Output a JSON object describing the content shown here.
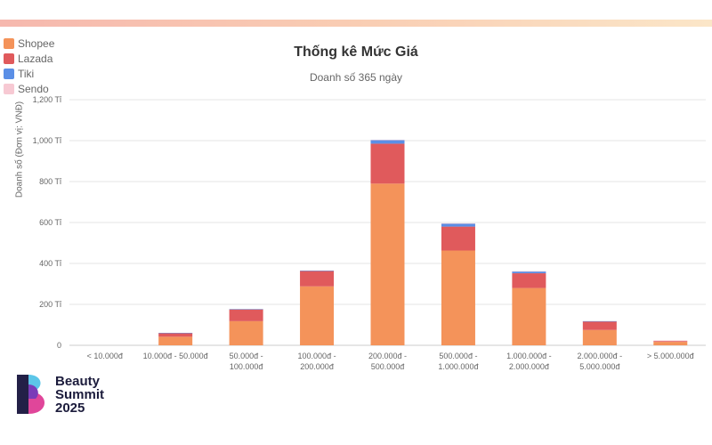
{
  "chart_data": {
    "type": "bar",
    "stacked": true,
    "title": "Thống kê Mức Giá",
    "subtitle": "Doanh số 365 ngày",
    "ylabel": "Doanh số (Đơn vị: VNĐ)",
    "ylim": [
      0,
      1200
    ],
    "yticks": [
      {
        "value": 0,
        "label": "0"
      },
      {
        "value": 200,
        "label": "200 Tỉ"
      },
      {
        "value": 400,
        "label": "400 Tỉ"
      },
      {
        "value": 600,
        "label": "600 Tỉ"
      },
      {
        "value": 800,
        "label": "800 Tỉ"
      },
      {
        "value": 1000,
        "label": "1,000 Tỉ"
      },
      {
        "value": 1200,
        "label": "1,200 Tỉ"
      }
    ],
    "grid": true,
    "legend_position": "top-left",
    "categories": [
      [
        "< 10.000đ"
      ],
      [
        "10.000đ - 50.000đ"
      ],
      [
        "50.000đ -",
        "100.000đ"
      ],
      [
        "100.000đ -",
        "200.000đ"
      ],
      [
        "200.000đ -",
        "500.000đ"
      ],
      [
        "500.000đ -",
        "1.000.000đ"
      ],
      [
        "1.000.000đ -",
        "2.000.000đ"
      ],
      [
        "2.000.000đ -",
        "5.000.000đ"
      ],
      [
        "> 5.000.000đ"
      ]
    ],
    "series": [
      {
        "name": "Shopee",
        "color": "#f4935a",
        "values": [
          0,
          42,
          118,
          288,
          790,
          463,
          280,
          75,
          17
        ]
      },
      {
        "name": "Lazada",
        "color": "#e05a5c",
        "values": [
          0,
          18,
          58,
          75,
          195,
          117,
          72,
          42,
          4
        ]
      },
      {
        "name": "Tiki",
        "color": "#5b8fe6",
        "values": [
          0,
          1,
          1,
          2,
          18,
          15,
          9,
          1,
          0
        ]
      },
      {
        "name": "Sendo",
        "color": "#f7c9d3",
        "values": [
          0,
          0,
          0,
          0,
          1,
          1,
          1,
          0,
          3
        ]
      }
    ]
  },
  "logo": {
    "lines": [
      "Beauty",
      "Summit",
      "2025"
    ]
  }
}
